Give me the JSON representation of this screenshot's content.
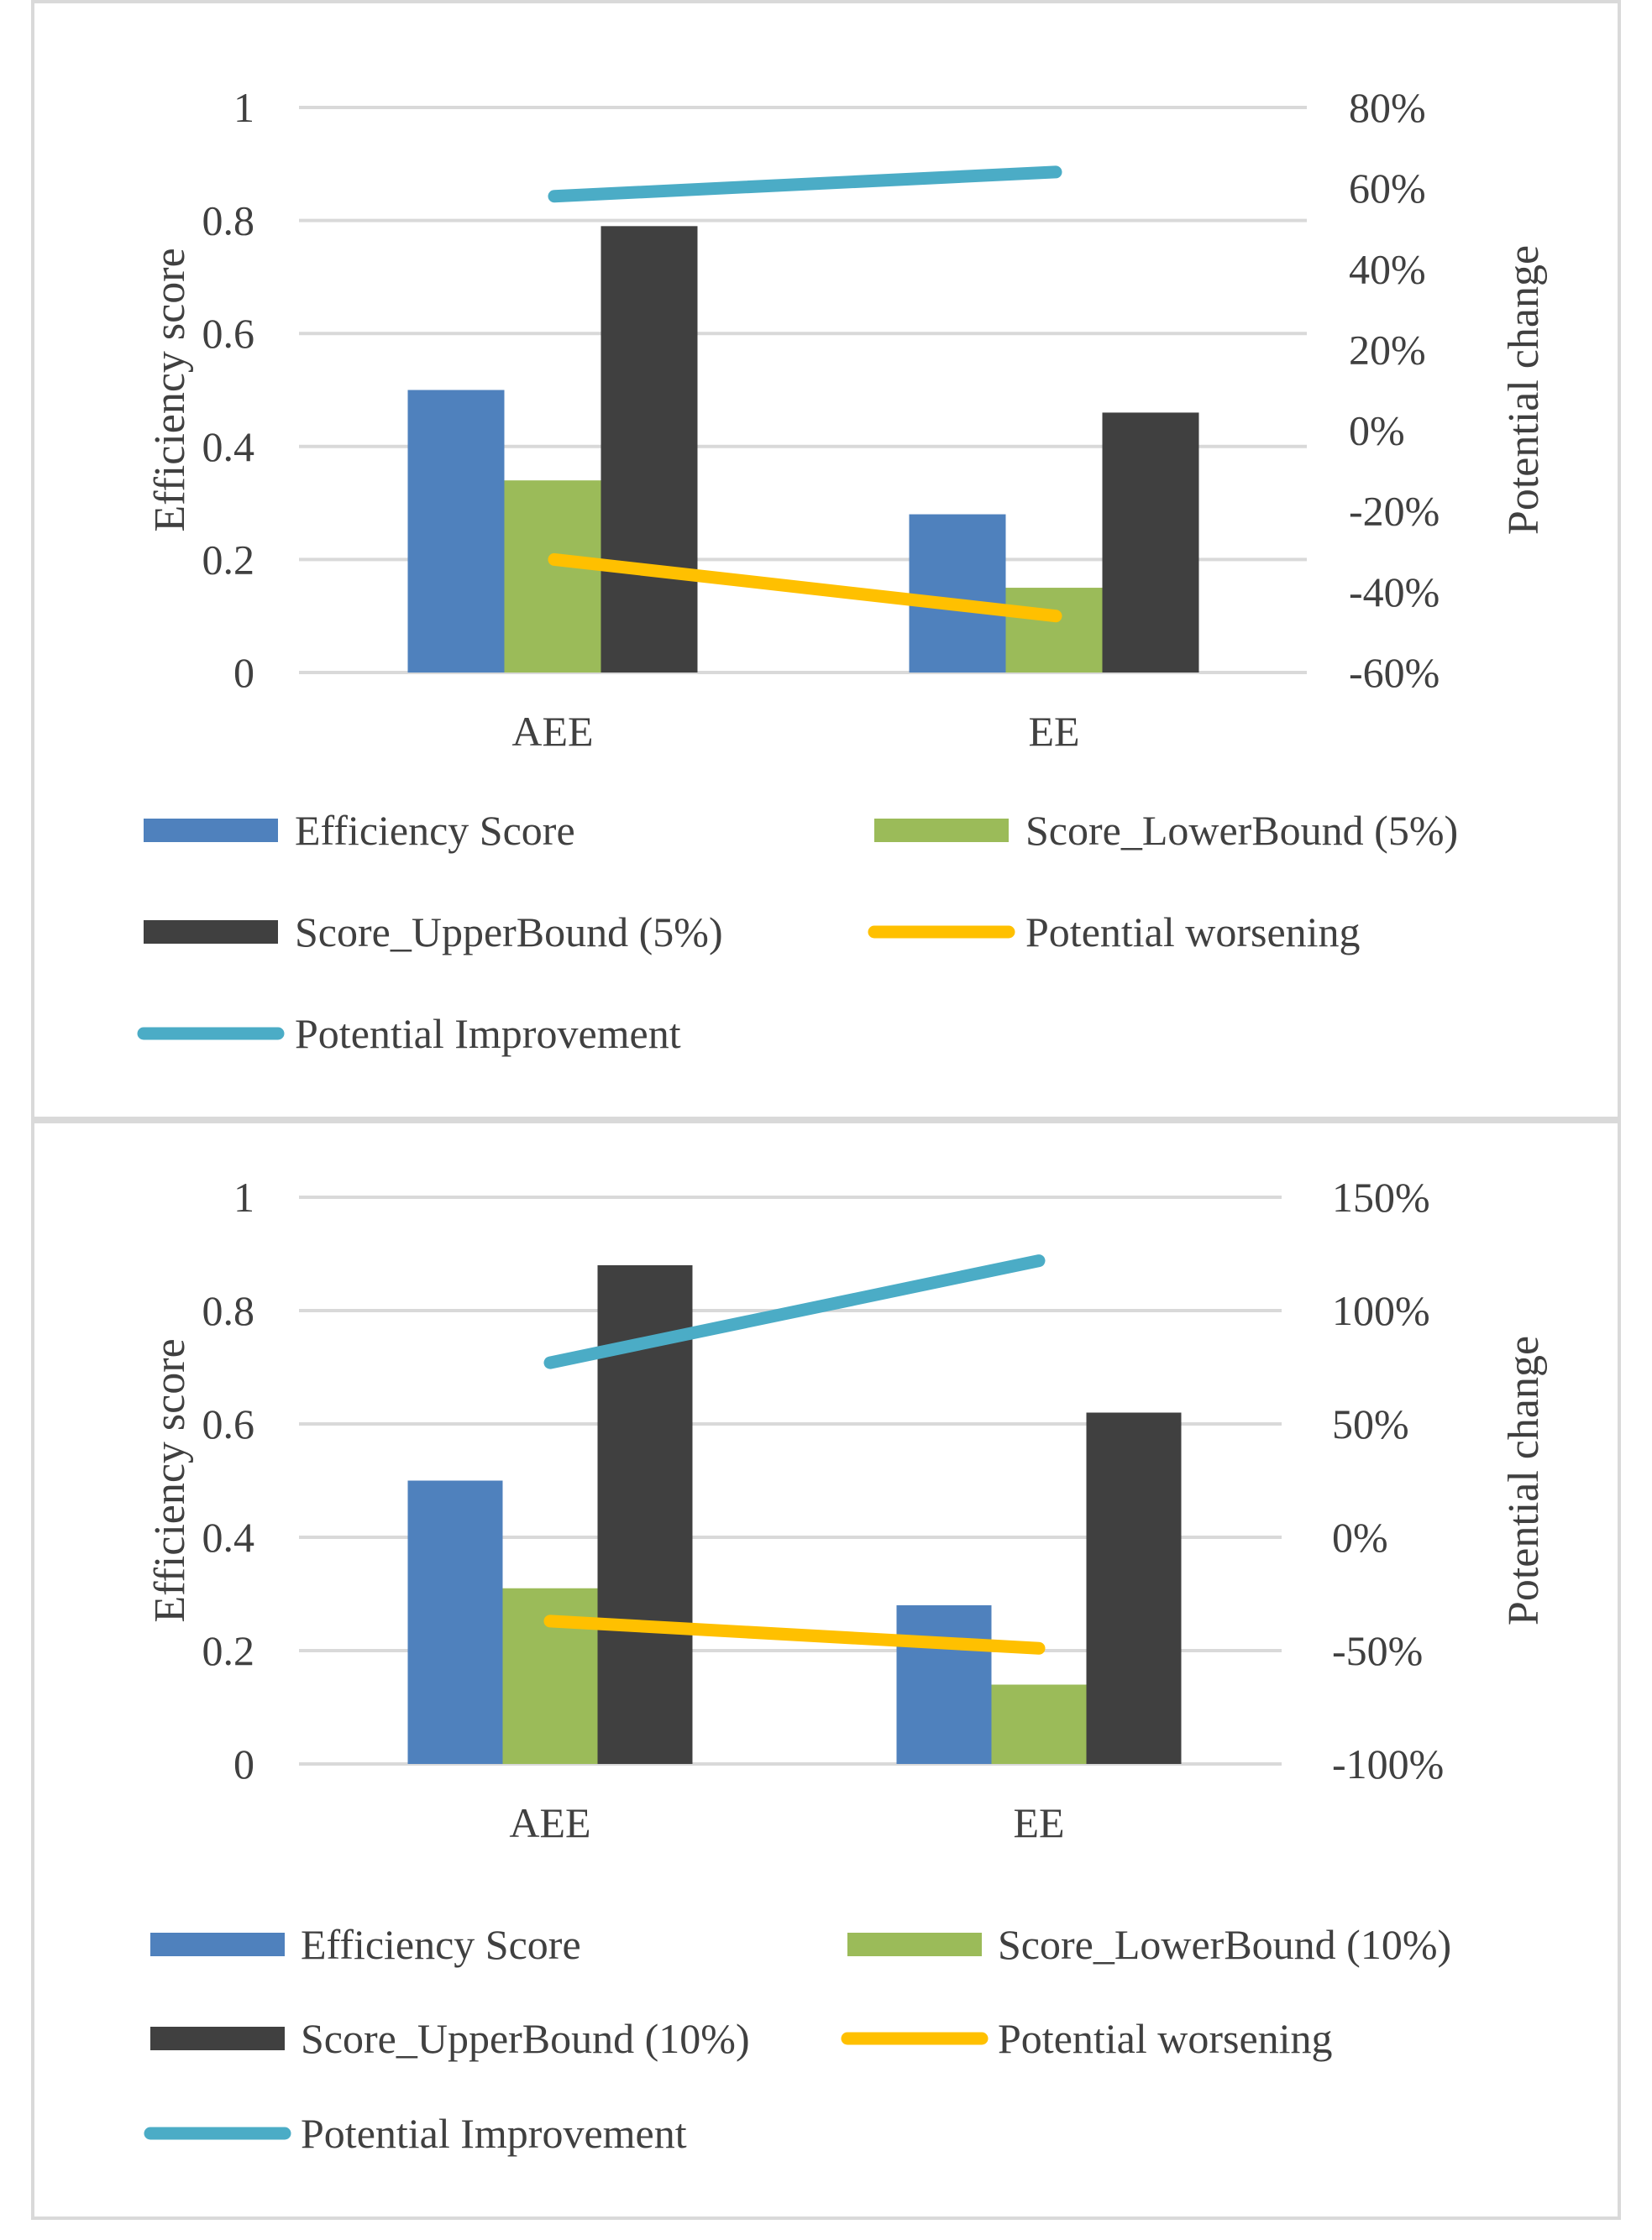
{
  "chart_data": [
    {
      "type": "bar",
      "categories": [
        "AEE",
        "EE"
      ],
      "series": [
        {
          "name": "Efficiency Score",
          "kind": "bar",
          "axis": "left",
          "color": "#4f81bd",
          "values": [
            0.5,
            0.28
          ]
        },
        {
          "name": "Score_LowerBound (5%)",
          "kind": "bar",
          "axis": "left",
          "color": "#9bbb59",
          "values": [
            0.34,
            0.15
          ]
        },
        {
          "name": "Score_UpperBound (5%)",
          "kind": "bar",
          "axis": "left",
          "color": "#404040",
          "values": [
            0.79,
            0.46
          ]
        },
        {
          "name": "Potential worsening",
          "kind": "line",
          "axis": "right",
          "color": "#ffc000",
          "values": [
            -0.32,
            -0.46
          ]
        },
        {
          "name": "Potential Improvement",
          "kind": "line",
          "axis": "right",
          "color": "#4bacc6",
          "values": [
            0.58,
            0.64
          ]
        }
      ],
      "y_left": {
        "label": "Efficiency score",
        "min": 0,
        "max": 1,
        "ticks": [
          {
            "v": 0,
            "t": "0"
          },
          {
            "v": 0.2,
            "t": "0.2"
          },
          {
            "v": 0.4,
            "t": "0.4"
          },
          {
            "v": 0.6,
            "t": "0.6"
          },
          {
            "v": 0.8,
            "t": "0.8"
          },
          {
            "v": 1,
            "t": "1"
          }
        ]
      },
      "y_right": {
        "label": "Potential change",
        "min": -0.6,
        "max": 0.8,
        "ticks": [
          {
            "v": -0.6,
            "t": "-60%"
          },
          {
            "v": -0.4,
            "t": "-40%"
          },
          {
            "v": -0.2,
            "t": "-20%"
          },
          {
            "v": 0,
            "t": "0%"
          },
          {
            "v": 0.2,
            "t": "20%"
          },
          {
            "v": 0.4,
            "t": "40%"
          },
          {
            "v": 0.6,
            "t": "60%"
          },
          {
            "v": 0.8,
            "t": "80%"
          }
        ]
      },
      "legend_position": "bottom"
    },
    {
      "type": "bar",
      "categories": [
        "AEE",
        "EE"
      ],
      "series": [
        {
          "name": "Efficiency Score",
          "kind": "bar",
          "axis": "left",
          "color": "#4f81bd",
          "values": [
            0.5,
            0.28
          ]
        },
        {
          "name": "Score_LowerBound (10%)",
          "kind": "bar",
          "axis": "left",
          "color": "#9bbb59",
          "values": [
            0.31,
            0.14
          ]
        },
        {
          "name": "Score_UpperBound (10%)",
          "kind": "bar",
          "axis": "left",
          "color": "#404040",
          "values": [
            0.88,
            0.62
          ]
        },
        {
          "name": "Potential worsening",
          "kind": "line",
          "axis": "right",
          "color": "#ffc000",
          "values": [
            -0.37,
            -0.49
          ]
        },
        {
          "name": "Potential Improvement",
          "kind": "line",
          "axis": "right",
          "color": "#4bacc6",
          "values": [
            0.77,
            1.22
          ]
        }
      ],
      "y_left": {
        "label": "Efficiency score",
        "min": 0,
        "max": 1,
        "ticks": [
          {
            "v": 0,
            "t": "0"
          },
          {
            "v": 0.2,
            "t": "0.2"
          },
          {
            "v": 0.4,
            "t": "0.4"
          },
          {
            "v": 0.6,
            "t": "0.6"
          },
          {
            "v": 0.8,
            "t": "0.8"
          },
          {
            "v": 1,
            "t": "1"
          }
        ]
      },
      "y_right": {
        "label": "Potential change",
        "min": -1,
        "max": 1.5,
        "ticks": [
          {
            "v": -1,
            "t": "-100%"
          },
          {
            "v": -0.5,
            "t": "-50%"
          },
          {
            "v": 0,
            "t": "0%"
          },
          {
            "v": 0.5,
            "t": "50%"
          },
          {
            "v": 1,
            "t": "100%"
          },
          {
            "v": 1.5,
            "t": "150%"
          }
        ]
      },
      "legend_position": "bottom"
    }
  ]
}
